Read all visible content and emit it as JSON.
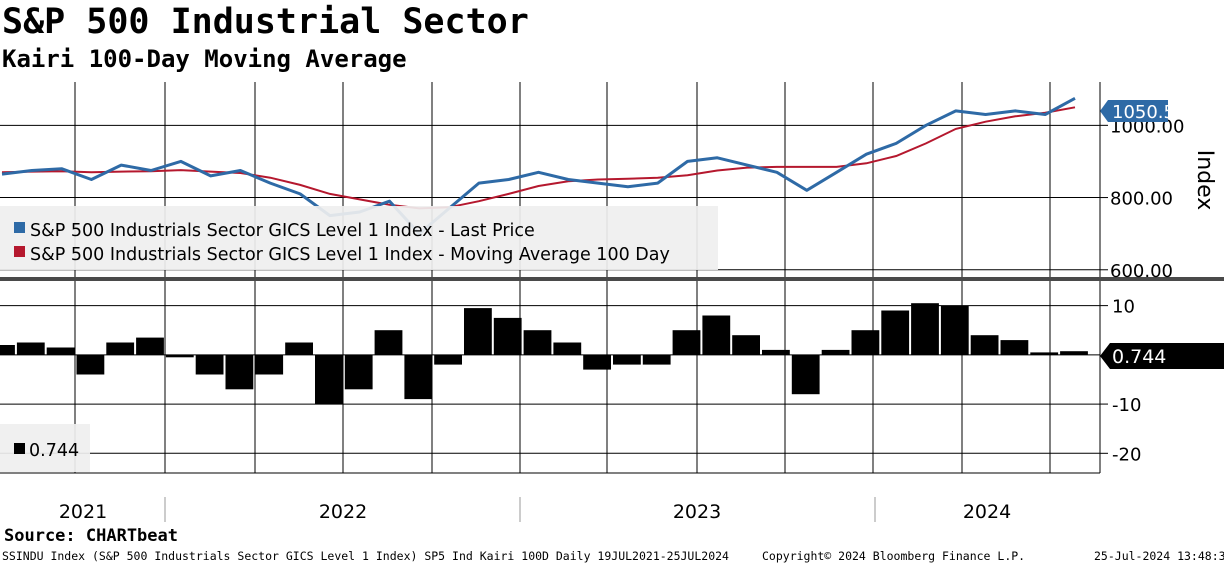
{
  "header": {
    "title": "S&P 500 Industrial Sector",
    "subtitle": "Kairi 100-Day Moving Average"
  },
  "chart_data": [
    {
      "type": "line",
      "panel": "upper",
      "ylabel": "Index",
      "ylim": [
        580,
        1120
      ],
      "yticks": [
        600,
        800,
        1000
      ],
      "ytick_labels": [
        "600.00",
        "800.00",
        "1000.00"
      ],
      "x_years": [
        "2021",
        "2022",
        "2023",
        "2024"
      ],
      "x": [
        "2021-07",
        "2021-08",
        "2021-09",
        "2021-10",
        "2021-11",
        "2021-12",
        "2022-01",
        "2022-02",
        "2022-03",
        "2022-04",
        "2022-05",
        "2022-06",
        "2022-07",
        "2022-08",
        "2022-09",
        "2022-10",
        "2022-11",
        "2022-12",
        "2023-01",
        "2023-02",
        "2023-03",
        "2023-04",
        "2023-05",
        "2023-06",
        "2023-07",
        "2023-08",
        "2023-09",
        "2023-10",
        "2023-11",
        "2023-12",
        "2024-01",
        "2024-02",
        "2024-03",
        "2024-04",
        "2024-05",
        "2024-06",
        "2024-07"
      ],
      "series": [
        {
          "name": "S&P 500 Industrials Sector GICS Level 1 Index - Last Price",
          "color": "#2e6aa6",
          "values": [
            865,
            875,
            880,
            850,
            890,
            875,
            900,
            860,
            875,
            840,
            810,
            750,
            760,
            790,
            700,
            770,
            840,
            850,
            870,
            850,
            840,
            830,
            840,
            900,
            910,
            890,
            870,
            820,
            870,
            920,
            950,
            1000,
            1040,
            1030,
            1040,
            1030,
            1075
          ]
        },
        {
          "name": "S&P 500 Industrials Sector GICS Level 1 Index - Moving Average 100 Day",
          "color": "#b5182e",
          "values": [
            870,
            872,
            873,
            870,
            872,
            873,
            876,
            872,
            868,
            855,
            835,
            810,
            795,
            780,
            770,
            773,
            790,
            810,
            832,
            845,
            850,
            852,
            855,
            862,
            875,
            883,
            885,
            885,
            885,
            895,
            915,
            950,
            990,
            1010,
            1025,
            1035,
            1050
          ]
        }
      ],
      "last_value_label": "1050.52",
      "last_value_color": "#2e6aa6"
    },
    {
      "type": "bar",
      "panel": "lower",
      "ylim": [
        -24,
        15
      ],
      "yticks": [
        10,
        -10,
        -20
      ],
      "ytick_labels": [
        "10",
        "-10",
        "-20"
      ],
      "x": [
        "2021-07",
        "2021-08",
        "2021-09",
        "2021-10",
        "2021-11",
        "2021-12",
        "2022-01",
        "2022-02",
        "2022-03",
        "2022-04",
        "2022-05",
        "2022-06",
        "2022-07",
        "2022-08",
        "2022-09",
        "2022-10",
        "2022-11",
        "2022-12",
        "2023-01",
        "2023-02",
        "2023-03",
        "2023-04",
        "2023-05",
        "2023-06",
        "2023-07",
        "2023-08",
        "2023-09",
        "2023-10",
        "2023-11",
        "2023-12",
        "2024-01",
        "2024-02",
        "2024-03",
        "2024-04",
        "2024-05",
        "2024-06",
        "2024-07"
      ],
      "series": [
        {
          "name": "0.744",
          "color": "#000000",
          "values": [
            2,
            2.5,
            1.5,
            -4,
            2.5,
            3.5,
            -0.5,
            -4,
            -7,
            -4,
            2.5,
            -10,
            -7,
            5,
            -9,
            -2,
            9.5,
            7.5,
            5,
            2.5,
            -3,
            -2,
            -2,
            5,
            8,
            4,
            1,
            -8,
            1,
            5,
            9,
            10.5,
            10,
            4,
            3,
            0.5,
            0.744
          ]
        }
      ],
      "last_value_label": "0.744",
      "last_value_color": "#000000"
    }
  ],
  "legend": {
    "upper": [
      {
        "label": "S&P 500 Industrials Sector GICS Level 1 Index - Last Price",
        "color": "#2e6aa6"
      },
      {
        "label": "S&P 500 Industrials Sector GICS Level 1 Index - Moving Average 100 Day",
        "color": "#b5182e"
      }
    ],
    "lower": [
      {
        "label": "0.744",
        "color": "#000000"
      }
    ]
  },
  "footer": {
    "source": "Source: CHARTbeat",
    "left": "SSINDU Index (S&P 500 Industrials Sector GICS Level 1 Index) SP5 Ind Kairi 100D  Daily 19JUL2021-25JUL2024",
    "middle": "Copyright© 2024 Bloomberg Finance L.P.",
    "right": "25-Jul-2024 13:48:33"
  }
}
